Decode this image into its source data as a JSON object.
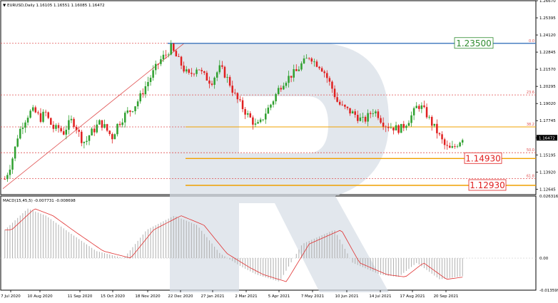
{
  "colors": {
    "background": "#ffffff",
    "frame": "#000000",
    "bull_candle": "#2fa02f",
    "bear_candle": "#e02020",
    "fib_red": "#e05050",
    "fib_orange": "#f0a000",
    "level_blue": "#4a7fc1",
    "macd_hist": "#b0b0b0",
    "macd_signal": "#e03030",
    "watermark": "#d6dde6",
    "price_tag": "#000000",
    "label_green": "#2e8b2e",
    "label_red": "#e02020"
  },
  "chart_data": [
    {
      "type": "candlestick",
      "symbol_line": "▼ EURUSD,Daily  1.16105  1.16551  1.16085  1.16472",
      "ylim": [
        1.2521,
        1.2667
      ],
      "y_ticks": [
        "1.26670",
        "1.25395",
        "1.24120",
        "1.22845",
        "1.21570",
        "1.20295",
        "1.19020",
        "1.17745",
        "1.16472",
        "1.15195",
        "1.13920",
        "1.12645"
      ],
      "y_tick_values": [
        1.2667,
        1.25395,
        1.2412,
        1.22845,
        1.2157,
        1.20295,
        1.1902,
        1.17745,
        1.16472,
        1.15195,
        1.1392,
        1.12645
      ],
      "x_ticks": [
        "7 Jul 2020",
        "10 Aug 2020",
        "11 Sep 2020",
        "15 Oct 2020",
        "18 Nov 2020",
        "22 Dec 2020",
        "27 Jan 2021",
        "2 Mar 2021",
        "5 Apr 2021",
        "7 May 2021",
        "10 Jun 2021",
        "14 Jul 2021",
        "17 Aug 2021",
        "20 Sep 2021"
      ],
      "current_price": "1.16472",
      "close_path": [
        1.134,
        1.142,
        1.153,
        1.168,
        1.175,
        1.181,
        1.185,
        1.183,
        1.179,
        1.184,
        1.176,
        1.171,
        1.172,
        1.168,
        1.174,
        1.178,
        1.172,
        1.164,
        1.161,
        1.168,
        1.171,
        1.176,
        1.174,
        1.169,
        1.165,
        1.174,
        1.178,
        1.183,
        1.185,
        1.189,
        1.194,
        1.201,
        1.207,
        1.213,
        1.219,
        1.224,
        1.227,
        1.232,
        1.226,
        1.221,
        1.215,
        1.211,
        1.214,
        1.218,
        1.212,
        1.209,
        1.206,
        1.212,
        1.217,
        1.212,
        1.206,
        1.198,
        1.192,
        1.187,
        1.182,
        1.178,
        1.173,
        1.176,
        1.183,
        1.188,
        1.194,
        1.201,
        1.206,
        1.209,
        1.212,
        1.214,
        1.219,
        1.222,
        1.226,
        1.221,
        1.219,
        1.215,
        1.208,
        1.201,
        1.192,
        1.188,
        1.186,
        1.184,
        1.182,
        1.179,
        1.177,
        1.181,
        1.185,
        1.183,
        1.177,
        1.174,
        1.173,
        1.172,
        1.171,
        1.174,
        1.178,
        1.183,
        1.189,
        1.187,
        1.182,
        1.176,
        1.171,
        1.165,
        1.159,
        1.156,
        1.157,
        1.161,
        1.165
      ],
      "fib_levels": [
        {
          "label": "0.0",
          "price": 1.235
        },
        {
          "label": "23.6",
          "price": 1.1966
        },
        {
          "label": "38.2",
          "price": 1.1728
        },
        {
          "label": "50.0",
          "price": 1.1536
        },
        {
          "label": "61.8",
          "price": 1.1344
        }
      ],
      "annotations": [
        {
          "text": "1.23500",
          "price": 1.235,
          "style": "green"
        },
        {
          "text": "1.14930",
          "price": 1.1493,
          "style": "red"
        },
        {
          "text": "1.12930",
          "price": 1.1293,
          "style": "red"
        }
      ]
    },
    {
      "type": "histogram",
      "label": "MACD(15,45,5) -0.007731 -0.008698",
      "y_ticks": [
        "0.026316",
        "0.00",
        "-0.013599"
      ],
      "y_tick_values": [
        0.026316,
        0.0,
        -0.013599
      ],
      "ylim": [
        -0.013599,
        0.026316
      ]
    }
  ]
}
